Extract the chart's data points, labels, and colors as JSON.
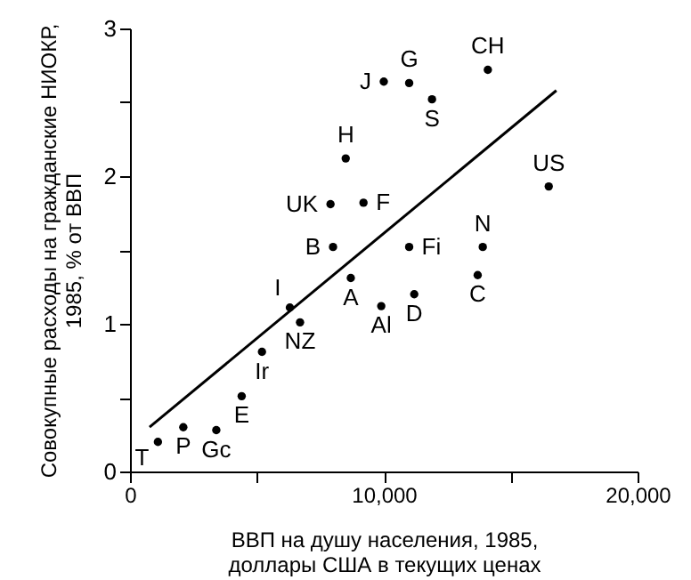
{
  "chart_data": {
    "type": "scatter",
    "xlabel": "ВВП на душу населения, 1985,\nдоллары США в текущих ценах",
    "ylabel": "Совокупные расходы на гражданские НИОКР,\n1985, % от ВВП",
    "xlim": [
      0,
      20000
    ],
    "xticks": [
      0,
      {
        "value": 5000,
        "label": null
      },
      {
        "value": 10000,
        "label": "10,000"
      },
      {
        "value": 15000,
        "label": null
      },
      {
        "value": 20000,
        "label": "20,000"
      }
    ],
    "ylim": [
      0,
      3
    ],
    "yticks": [
      0,
      {
        "value": 0.5,
        "label": null
      },
      1,
      {
        "value": 1.5,
        "label": null
      },
      2,
      {
        "value": 2.5,
        "label": null
      },
      3
    ],
    "marker": "circle",
    "series": [
      {
        "color": "#000000",
        "x": [
          1100,
          2100,
          3400,
          4400,
          5200,
          6300,
          6700,
          8000,
          8700,
          9900,
          8500,
          7900,
          9200,
          10000,
          11000,
          11900,
          14100,
          16500,
          11000,
          11200,
          13900,
          13700
        ],
        "values": [
          0.2,
          0.3,
          0.28,
          0.51,
          0.81,
          1.11,
          1.01,
          1.52,
          1.31,
          1.12,
          2.12,
          1.81,
          1.82,
          2.64,
          2.63,
          2.52,
          2.72,
          1.93,
          1.52,
          1.2,
          1.52,
          1.33
        ],
        "value_labels": [
          "T",
          "P",
          "Gc",
          "E",
          "Ir",
          "I",
          "NZ",
          "B",
          "A",
          "Al",
          "H",
          "UK",
          "F",
          "J",
          "G",
          "S",
          "CH",
          "US",
          "Fi",
          "D",
          "N",
          "C"
        ]
      },
      {
        "type": "line",
        "marker": "none",
        "color": "#000000",
        "x": [
          770,
          16800
        ],
        "values": [
          0.3,
          2.58
        ]
      }
    ]
  }
}
